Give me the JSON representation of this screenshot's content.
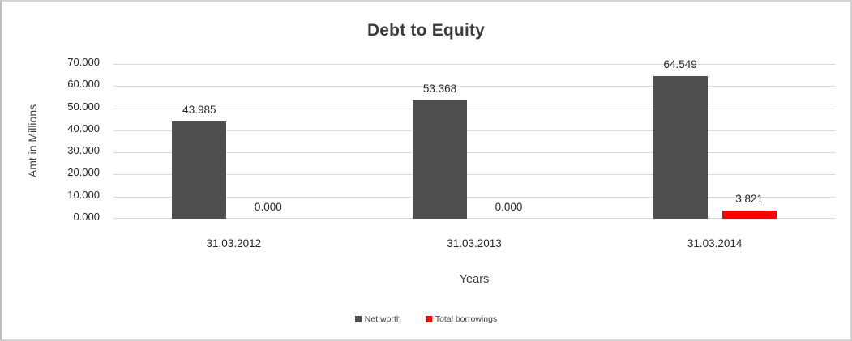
{
  "chart_data": {
    "type": "bar",
    "title": "Debt to Equity",
    "xlabel": "Years",
    "ylabel": "Amt in Millions",
    "categories": [
      "31.03.2012",
      "31.03.2013",
      "31.03.2014"
    ],
    "series": [
      {
        "name": "Net worth",
        "color": "#4f4f4f",
        "values": [
          43.985,
          53.368,
          64.549
        ],
        "labels": [
          "43.985",
          "53.368",
          "64.549"
        ]
      },
      {
        "name": "Total borrowings",
        "color": "#ff0000",
        "values": [
          0.0,
          0.0,
          3.821
        ],
        "labels": [
          "0.000",
          "0.000",
          "3.821"
        ]
      }
    ],
    "ylim": [
      0,
      70
    ],
    "yticks": [
      0,
      10,
      20,
      30,
      40,
      50,
      60,
      70
    ],
    "ytick_labels": [
      "0.000",
      "10.000",
      "20.000",
      "30.000",
      "40.000",
      "50.000",
      "60.000",
      "70.000"
    ],
    "grid": true,
    "legend_position": "bottom",
    "colors": {
      "gridline": "#d9d9d9",
      "title_text": "#3b3b3b",
      "axis_text": "#262626"
    }
  }
}
